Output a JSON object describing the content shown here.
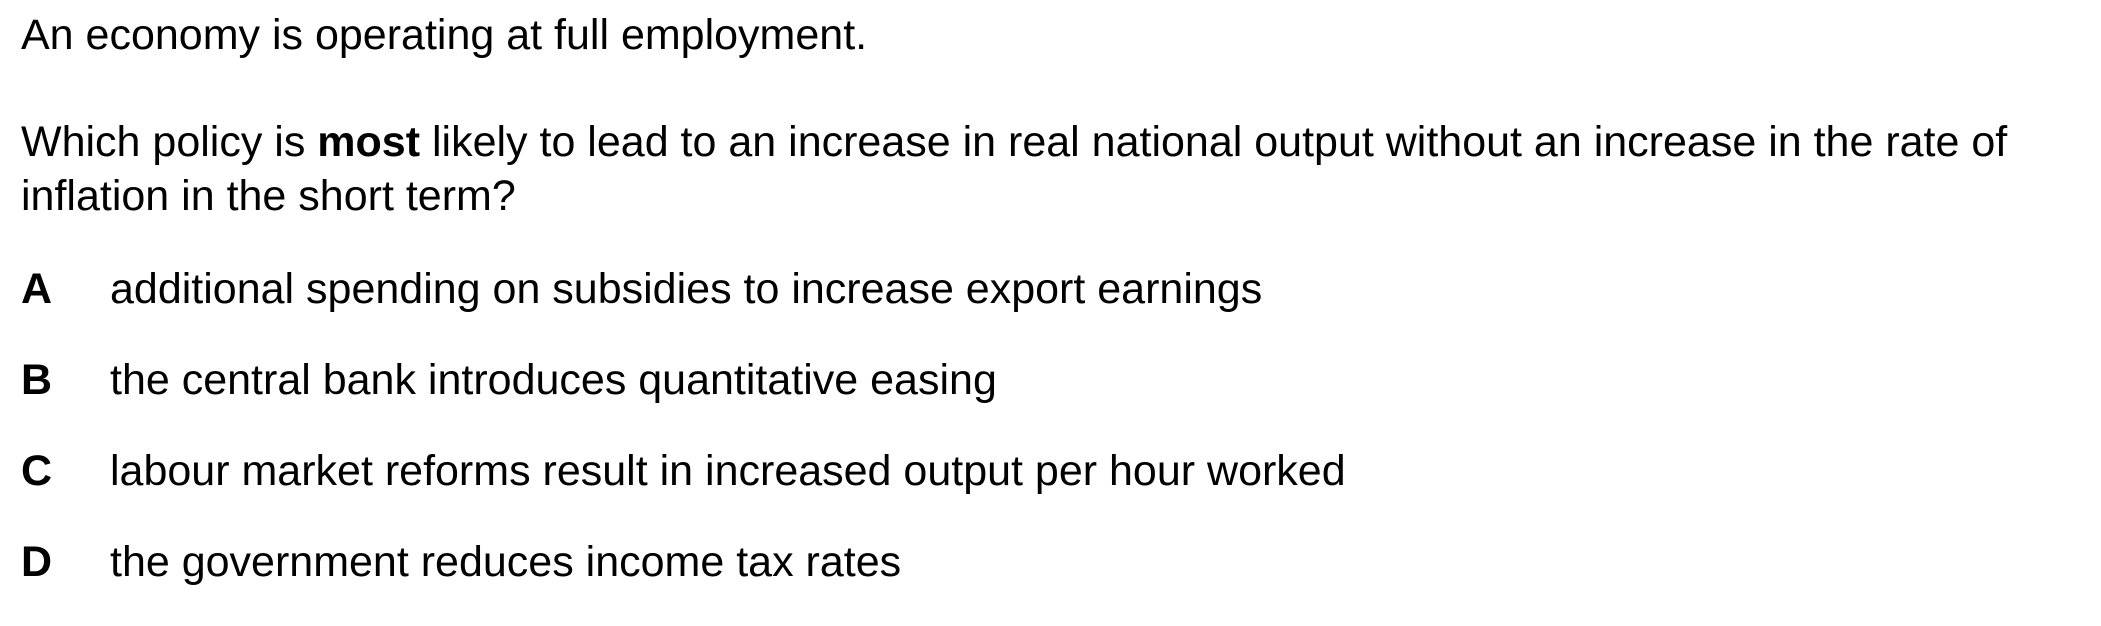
{
  "intro": "An economy is operating at full employment.",
  "question": {
    "before": "Which policy is ",
    "emphasis": "most",
    "after": " likely to lead to an increase in real national output without an increase in the rate of inflation in the short term?"
  },
  "options": [
    {
      "letter": "A",
      "text": "additional spending on subsidies to increase export earnings"
    },
    {
      "letter": "B",
      "text": "the central bank introduces quantitative easing"
    },
    {
      "letter": "C",
      "text": "labour market reforms result in increased output per hour worked"
    },
    {
      "letter": "D",
      "text": "the government reduces income tax rates"
    }
  ]
}
